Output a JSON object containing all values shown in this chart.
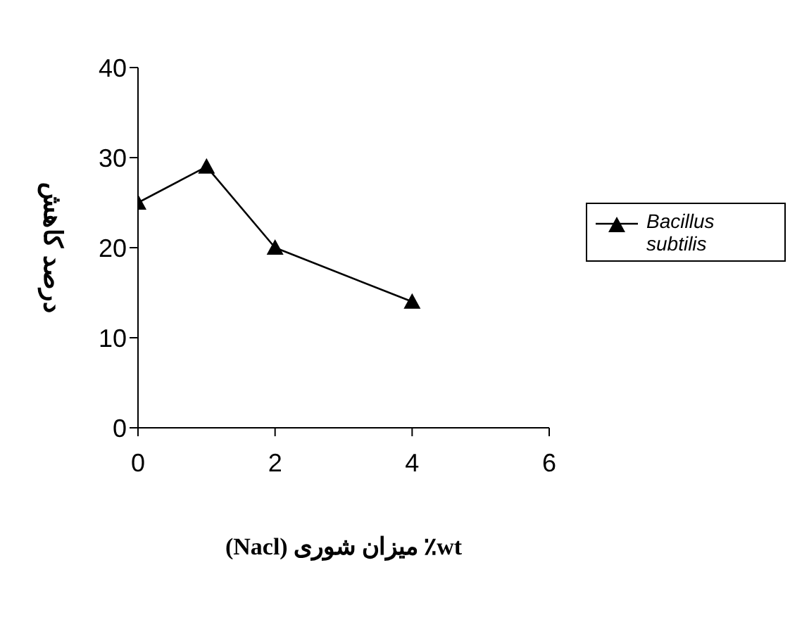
{
  "chart_data": {
    "type": "line",
    "xlabel": "wt٪ میزان شوری (Nacl)",
    "ylabel": "درصد کاهش",
    "x": [
      0,
      1,
      2,
      4
    ],
    "series": [
      {
        "name": "Bacillus subtilis",
        "color": "#000000",
        "values": [
          25,
          29,
          20,
          14
        ]
      }
    ],
    "xlim": [
      0,
      6
    ],
    "xticks": [
      0,
      2,
      4,
      6
    ],
    "ylim": [
      0,
      40
    ],
    "yticks": [
      0,
      10,
      20,
      30,
      40
    ],
    "grid": false,
    "legend": "right",
    "marker": "triangle",
    "line_style": "solid"
  }
}
